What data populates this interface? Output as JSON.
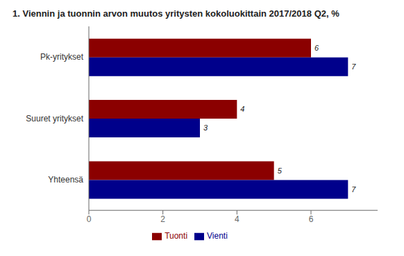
{
  "chart_data": {
    "type": "bar",
    "title": "1. Viennin ja tuonnin arvon muutos yritysten kokoluokittain 2017/2018 Q2, %",
    "orientation": "horizontal",
    "categories": [
      "Pk-yritykset",
      "Suuret yritykset",
      "Yhteensä"
    ],
    "series": [
      {
        "name": "Tuonti",
        "color": "#8B0000",
        "values": [
          6,
          4,
          5
        ]
      },
      {
        "name": "Vienti",
        "color": "#00008B",
        "values": [
          7,
          3,
          7
        ]
      }
    ],
    "xlim": [
      0,
      7.8
    ],
    "xticks": [
      0,
      2,
      4,
      6
    ],
    "grid": false,
    "legend": "bottom",
    "data_labels": true
  }
}
